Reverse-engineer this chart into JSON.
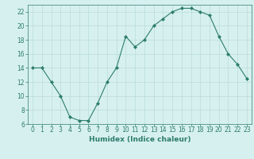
{
  "x": [
    0,
    1,
    2,
    3,
    4,
    5,
    6,
    7,
    8,
    9,
    10,
    11,
    12,
    13,
    14,
    15,
    16,
    17,
    18,
    19,
    20,
    21,
    22,
    23
  ],
  "y": [
    14,
    14,
    12,
    10,
    7,
    6.5,
    6.5,
    9,
    12,
    14,
    18.5,
    17,
    18,
    20,
    21,
    22,
    22.5,
    22.5,
    22,
    21.5,
    18.5,
    16,
    14.5,
    12.5
  ],
  "line_color": "#2d7d6b",
  "marker": "D",
  "marker_size": 2,
  "bg_color": "#d6f0ef",
  "grid_color": "#b8ddd8",
  "xlabel": "Humidex (Indice chaleur)",
  "ylabel": "",
  "ylim": [
    6,
    23
  ],
  "xlim": [
    -0.5,
    23.5
  ],
  "yticks": [
    6,
    8,
    10,
    12,
    14,
    16,
    18,
    20,
    22
  ],
  "xticks": [
    0,
    1,
    2,
    3,
    4,
    5,
    6,
    7,
    8,
    9,
    10,
    11,
    12,
    13,
    14,
    15,
    16,
    17,
    18,
    19,
    20,
    21,
    22,
    23
  ],
  "font_color": "#2d7d6b",
  "tick_label_size": 5.5,
  "xlabel_size": 6.5
}
